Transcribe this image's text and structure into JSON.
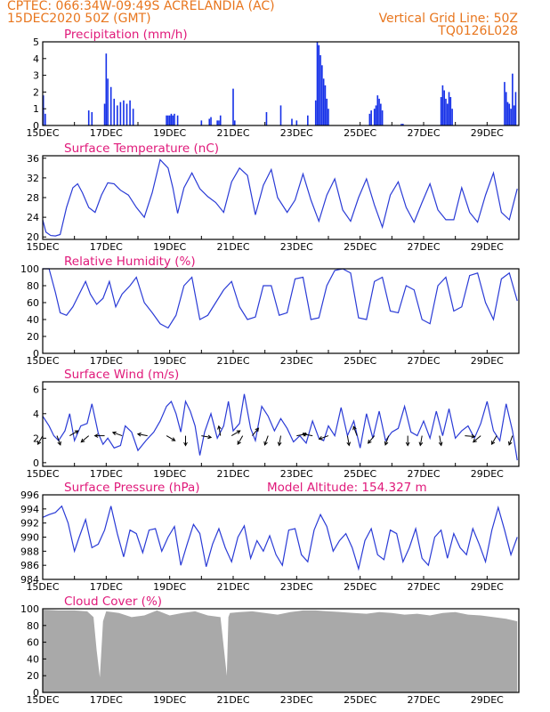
{
  "header": {
    "line1_left": "CPTEC:   066:34W-09:49S   ACRELANDIA (AC)",
    "line2_left": "15DEC2020 50Z (GMT)",
    "line1_right": "Vertical Grid Line: 50Z",
    "line2_right": "TQ0126L028"
  },
  "colors": {
    "header": "#e8761e",
    "title": "#e0197a",
    "line": "#2a3bd6",
    "bar": "#1530e8",
    "cloud": "#a9a9a9",
    "arrow": "#000000"
  },
  "chart_data": [
    {
      "type": "bar",
      "title": "Precipitation (mm/h)",
      "xlim_days": [
        15,
        30
      ],
      "x_tick_labels": [
        "15DEC",
        "17DEC",
        "19DEC",
        "21DEC",
        "23DEC",
        "25DEC",
        "27DEC",
        "29DEC"
      ],
      "ylim": [
        0,
        5
      ],
      "y_ticks": [
        0,
        1,
        2,
        3,
        4,
        5
      ],
      "x": [
        15.02,
        15.08,
        16.45,
        16.55,
        16.95,
        17.0,
        17.05,
        17.15,
        17.25,
        17.35,
        17.45,
        17.55,
        17.65,
        17.75,
        17.85,
        18.9,
        18.95,
        19.0,
        19.05,
        19.1,
        19.15,
        19.25,
        20.0,
        20.25,
        20.3,
        20.5,
        20.55,
        20.6,
        21.0,
        21.05,
        22.05,
        22.5,
        22.85,
        23.0,
        23.35,
        23.6,
        23.65,
        23.7,
        23.75,
        23.8,
        23.85,
        23.9,
        23.95,
        24.0,
        25.3,
        25.35,
        25.45,
        25.5,
        25.55,
        25.6,
        25.65,
        25.7,
        26.3,
        26.35,
        27.55,
        27.6,
        27.65,
        27.7,
        27.75,
        27.8,
        27.85,
        27.9,
        29.55,
        29.6,
        29.65,
        29.7,
        29.75,
        29.8,
        29.85,
        29.9
      ],
      "values": [
        1.8,
        0.7,
        0.9,
        0.8,
        1.3,
        4.3,
        2.8,
        2.3,
        1.6,
        1.2,
        1.4,
        1.5,
        1.3,
        1.5,
        1.0,
        0.6,
        0.6,
        0.6,
        0.7,
        0.6,
        0.7,
        0.6,
        0.3,
        0.4,
        0.5,
        0.3,
        0.3,
        0.6,
        2.2,
        0.3,
        0.8,
        1.2,
        0.4,
        0.3,
        0.6,
        1.5,
        5.0,
        4.8,
        4.2,
        3.6,
        2.8,
        2.4,
        1.6,
        1.0,
        0.7,
        0.9,
        1.0,
        1.2,
        1.8,
        1.6,
        1.3,
        0.9,
        0.1,
        0.1,
        1.7,
        2.4,
        2.1,
        1.6,
        1.3,
        2.0,
        1.7,
        1.0,
        2.6,
        2.0,
        1.4,
        1.3,
        1.0,
        3.1,
        1.2,
        2.0
      ]
    },
    {
      "type": "line",
      "title": "Surface Temperature (nC)",
      "xlim_days": [
        15,
        30
      ],
      "x_tick_labels": [
        "15DEC",
        "17DEC",
        "19DEC",
        "21DEC",
        "23DEC",
        "25DEC",
        "27DEC",
        "29DEC"
      ],
      "ylim": [
        19.5,
        36.5
      ],
      "y_ticks": [
        20,
        24,
        28,
        32,
        36
      ],
      "x": [
        15.0,
        15.1,
        15.25,
        15.4,
        15.55,
        15.75,
        15.95,
        16.1,
        16.25,
        16.45,
        16.65,
        16.85,
        17.05,
        17.25,
        17.45,
        17.7,
        17.95,
        18.2,
        18.45,
        18.7,
        18.95,
        19.1,
        19.25,
        19.45,
        19.7,
        19.95,
        20.2,
        20.45,
        20.7,
        20.95,
        21.2,
        21.45,
        21.7,
        21.95,
        22.2,
        22.4,
        22.7,
        22.95,
        23.2,
        23.45,
        23.7,
        23.95,
        24.2,
        24.45,
        24.7,
        24.95,
        25.2,
        25.45,
        25.7,
        25.95,
        26.2,
        26.45,
        26.7,
        26.95,
        27.2,
        27.45,
        27.7,
        27.95,
        28.2,
        28.45,
        28.7,
        28.95,
        29.2,
        29.45,
        29.7,
        29.95
      ],
      "values": [
        23.5,
        21.0,
        20.3,
        20.2,
        20.5,
        26.0,
        30.0,
        30.8,
        29.0,
        26.0,
        25.0,
        28.5,
        31.0,
        30.8,
        29.5,
        28.5,
        26.0,
        24.0,
        29.0,
        35.7,
        34.0,
        30.0,
        24.8,
        30.0,
        33.0,
        29.8,
        28.2,
        27.0,
        25.0,
        31.2,
        34.0,
        32.5,
        24.5,
        30.5,
        33.7,
        28.0,
        25.0,
        27.5,
        32.8,
        27.5,
        23.2,
        28.5,
        31.8,
        25.5,
        23.2,
        28.0,
        31.8,
        26.5,
        22.0,
        28.5,
        31.2,
        26.0,
        23.0,
        27.0,
        30.8,
        25.5,
        23.5,
        23.5,
        30.0,
        25.0,
        23.0,
        28.5,
        33.0,
        25.0,
        23.5,
        29.8
      ]
    },
    {
      "type": "line",
      "title": "Relative Humidity (%)",
      "xlim_days": [
        15,
        30
      ],
      "x_tick_labels": [
        "15DEC",
        "17DEC",
        "19DEC",
        "21DEC",
        "23DEC",
        "25DEC",
        "27DEC",
        "29DEC"
      ],
      "ylim": [
        0,
        100
      ],
      "y_ticks": [
        0,
        20,
        40,
        60,
        80,
        100
      ],
      "x": [
        15.0,
        15.2,
        15.4,
        15.55,
        15.75,
        15.95,
        16.15,
        16.35,
        16.5,
        16.7,
        16.9,
        17.1,
        17.3,
        17.5,
        17.75,
        17.95,
        18.2,
        18.45,
        18.7,
        18.95,
        19.2,
        19.45,
        19.7,
        19.95,
        20.2,
        20.45,
        20.7,
        20.95,
        21.2,
        21.45,
        21.7,
        21.95,
        22.2,
        22.45,
        22.7,
        22.95,
        23.2,
        23.45,
        23.7,
        23.95,
        24.2,
        24.45,
        24.7,
        24.95,
        25.2,
        25.45,
        25.7,
        25.95,
        26.2,
        26.45,
        26.7,
        26.95,
        27.2,
        27.45,
        27.7,
        27.95,
        28.2,
        28.45,
        28.7,
        28.95,
        29.2,
        29.45,
        29.7,
        29.95
      ],
      "values": [
        100,
        100,
        72,
        48,
        45,
        55,
        70,
        85,
        70,
        58,
        65,
        85,
        55,
        70,
        80,
        90,
        60,
        48,
        35,
        30,
        45,
        80,
        90,
        40,
        45,
        60,
        75,
        85,
        55,
        40,
        43,
        80,
        80,
        45,
        48,
        88,
        90,
        40,
        42,
        80,
        98,
        100,
        95,
        42,
        40,
        85,
        90,
        50,
        48,
        80,
        75,
        40,
        35,
        80,
        90,
        50,
        55,
        92,
        95,
        60,
        40,
        88,
        95,
        62
      ]
    },
    {
      "type": "line",
      "title": "Surface Wind (m/s)",
      "xlim_days": [
        15,
        30
      ],
      "x_tick_labels": [
        "15DEC",
        "17DEC",
        "19DEC",
        "21DEC",
        "23DEC",
        "25DEC",
        "27DEC",
        "29DEC"
      ],
      "ylim": [
        -0.3,
        6.6
      ],
      "y_ticks": [
        0,
        2,
        4,
        6
      ],
      "x": [
        15.0,
        15.2,
        15.35,
        15.5,
        15.7,
        15.85,
        16.0,
        16.2,
        16.4,
        16.55,
        16.75,
        16.9,
        17.05,
        17.25,
        17.45,
        17.6,
        17.8,
        18.0,
        18.25,
        18.5,
        18.7,
        18.9,
        19.05,
        19.2,
        19.35,
        19.5,
        19.65,
        19.8,
        19.95,
        20.1,
        20.3,
        20.5,
        20.7,
        20.85,
        21.0,
        21.2,
        21.35,
        21.55,
        21.7,
        21.9,
        22.1,
        22.3,
        22.5,
        22.7,
        22.9,
        23.1,
        23.3,
        23.5,
        23.7,
        23.85,
        24.0,
        24.2,
        24.4,
        24.6,
        24.8,
        25.0,
        25.2,
        25.4,
        25.6,
        25.8,
        26.0,
        26.2,
        26.4,
        26.6,
        26.8,
        27.0,
        27.2,
        27.4,
        27.6,
        27.8,
        28.0,
        28.2,
        28.4,
        28.6,
        28.8,
        29.0,
        29.2,
        29.4,
        29.6,
        29.8,
        29.95
      ],
      "values": [
        3.8,
        3.0,
        2.2,
        1.8,
        2.6,
        4.0,
        1.8,
        3.0,
        3.2,
        4.8,
        2.4,
        1.5,
        2.0,
        1.2,
        1.4,
        3.0,
        2.5,
        1.0,
        1.8,
        2.5,
        3.4,
        4.6,
        5.0,
        4.0,
        2.5,
        5.0,
        4.2,
        3.0,
        0.6,
        2.5,
        4.0,
        2.0,
        3.0,
        5.0,
        2.6,
        3.2,
        5.6,
        2.8,
        1.8,
        4.6,
        3.8,
        2.6,
        3.6,
        2.8,
        1.7,
        2.2,
        1.6,
        3.4,
        2.0,
        1.8,
        3.0,
        2.2,
        4.5,
        2.2,
        3.4,
        1.2,
        4.0,
        2.0,
        4.2,
        1.8,
        2.5,
        2.8,
        4.6,
        2.5,
        2.2,
        3.4,
        2.0,
        4.2,
        2.2,
        4.4,
        2.0,
        2.6,
        3.0,
        2.0,
        3.2,
        5.0,
        2.6,
        1.8,
        4.8,
        2.6,
        0.2
      ],
      "arrows": [
        {
          "day": 15.0,
          "dir_deg": 210
        },
        {
          "day": 15.45,
          "dir_deg": 160
        },
        {
          "day": 15.85,
          "dir_deg": 60
        },
        {
          "day": 16.45,
          "dir_deg": 230
        },
        {
          "day": 16.95,
          "dir_deg": 270
        },
        {
          "day": 17.5,
          "dir_deg": 290
        },
        {
          "day": 18.3,
          "dir_deg": 280
        },
        {
          "day": 18.9,
          "dir_deg": 120
        },
        {
          "day": 19.5,
          "dir_deg": 180
        },
        {
          "day": 20.0,
          "dir_deg": 100
        },
        {
          "day": 20.6,
          "dir_deg": 350
        },
        {
          "day": 20.95,
          "dir_deg": 60
        },
        {
          "day": 21.3,
          "dir_deg": 210
        },
        {
          "day": 21.6,
          "dir_deg": 40
        },
        {
          "day": 22.1,
          "dir_deg": 200
        },
        {
          "day": 22.5,
          "dir_deg": 190
        },
        {
          "day": 23.0,
          "dir_deg": 80
        },
        {
          "day": 23.5,
          "dir_deg": 280
        },
        {
          "day": 24.0,
          "dir_deg": 250
        },
        {
          "day": 24.6,
          "dir_deg": 170
        },
        {
          "day": 24.9,
          "dir_deg": 340
        },
        {
          "day": 25.45,
          "dir_deg": 220
        },
        {
          "day": 25.9,
          "dir_deg": 200
        },
        {
          "day": 26.5,
          "dir_deg": 180
        },
        {
          "day": 26.95,
          "dir_deg": 190
        },
        {
          "day": 27.5,
          "dir_deg": 170
        },
        {
          "day": 28.3,
          "dir_deg": 95
        },
        {
          "day": 28.8,
          "dir_deg": 230
        },
        {
          "day": 29.3,
          "dir_deg": 210
        },
        {
          "day": 29.8,
          "dir_deg": 200
        }
      ]
    },
    {
      "type": "line",
      "title": "Surface Pressure (hPa)",
      "annotation": "Model Altitude: 154.327  m",
      "xlim_days": [
        15,
        30
      ],
      "x_tick_labels": [
        "15DEC",
        "17DEC",
        "19DEC",
        "21DEC",
        "23DEC",
        "25DEC",
        "27DEC",
        "29DEC"
      ],
      "ylim": [
        984,
        996
      ],
      "y_ticks": [
        984,
        986,
        988,
        990,
        992,
        994,
        996
      ],
      "x": [
        15.0,
        15.2,
        15.4,
        15.6,
        15.8,
        16.0,
        16.15,
        16.35,
        16.55,
        16.75,
        16.95,
        17.15,
        17.35,
        17.55,
        17.75,
        17.95,
        18.15,
        18.35,
        18.55,
        18.75,
        18.95,
        19.15,
        19.35,
        19.55,
        19.75,
        19.95,
        20.15,
        20.35,
        20.55,
        20.75,
        20.95,
        21.15,
        21.35,
        21.55,
        21.75,
        21.95,
        22.15,
        22.35,
        22.55,
        22.75,
        22.95,
        23.15,
        23.35,
        23.55,
        23.75,
        23.95,
        24.15,
        24.35,
        24.55,
        24.75,
        24.95,
        25.15,
        25.35,
        25.55,
        25.75,
        25.95,
        26.15,
        26.35,
        26.55,
        26.75,
        26.95,
        27.15,
        27.35,
        27.55,
        27.75,
        27.95,
        28.15,
        28.35,
        28.55,
        28.75,
        28.95,
        29.15,
        29.35,
        29.55,
        29.75,
        29.95
      ],
      "values": [
        992.8,
        993.2,
        993.5,
        994.4,
        992.0,
        988.0,
        990.0,
        992.5,
        988.5,
        989.0,
        991.0,
        994.4,
        990.5,
        987.2,
        991.0,
        990.5,
        987.8,
        991.0,
        991.2,
        988.0,
        990.0,
        991.5,
        986.0,
        989.0,
        991.8,
        990.5,
        985.8,
        989.0,
        991.2,
        988.5,
        986.5,
        990.0,
        991.6,
        987.0,
        989.5,
        988.0,
        990.2,
        987.5,
        986.0,
        991.0,
        991.2,
        987.5,
        986.5,
        991.0,
        993.2,
        991.5,
        988.0,
        989.5,
        990.5,
        988.5,
        985.5,
        989.5,
        991.2,
        987.5,
        986.8,
        991.0,
        990.5,
        986.5,
        988.5,
        991.2,
        987.0,
        986.0,
        990.0,
        991.0,
        987.0,
        990.5,
        988.5,
        987.5,
        991.2,
        989.0,
        986.5,
        991.0,
        994.2,
        991.0,
        987.5,
        990.0
      ]
    },
    {
      "type": "area",
      "title": "Cloud Cover (%)",
      "xlim_days": [
        15,
        30
      ],
      "x_tick_labels": [
        "15DEC",
        "17DEC",
        "19DEC",
        "21DEC",
        "23DEC",
        "25DEC",
        "27DEC",
        "29DEC"
      ],
      "ylim": [
        0,
        100
      ],
      "y_ticks": [
        0,
        20,
        40,
        60,
        80,
        100
      ],
      "x": [
        15.0,
        15.5,
        16.0,
        16.4,
        16.6,
        16.7,
        16.8,
        16.9,
        17.0,
        17.4,
        17.8,
        18.2,
        18.6,
        19.0,
        19.4,
        19.8,
        20.2,
        20.6,
        20.8,
        20.85,
        20.9,
        21.2,
        21.6,
        22.0,
        22.4,
        22.8,
        23.2,
        23.6,
        24.0,
        24.4,
        24.8,
        25.2,
        25.6,
        26.0,
        26.4,
        26.8,
        27.2,
        27.6,
        28.0,
        28.4,
        28.8,
        29.2,
        29.6,
        29.95
      ],
      "values": [
        99,
        98,
        98,
        97,
        90,
        50,
        18,
        85,
        97,
        95,
        90,
        92,
        98,
        92,
        95,
        97,
        92,
        90,
        20,
        90,
        95,
        96,
        97,
        95,
        93,
        96,
        98,
        98,
        97,
        96,
        95,
        94,
        96,
        95,
        93,
        94,
        92,
        95,
        96,
        93,
        92,
        90,
        88,
        85
      ]
    }
  ]
}
